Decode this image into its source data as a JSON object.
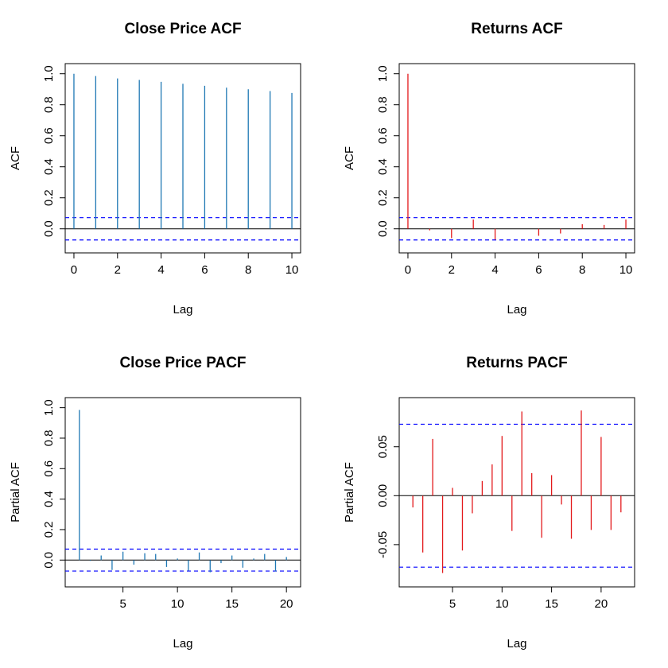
{
  "colors": {
    "blue_bar": "#1f78b4",
    "red_bar": "#e31a1c",
    "conf_line": "#0000ff",
    "axis": "#000000"
  },
  "chart_data": [
    {
      "type": "bar",
      "title": "Close Price ACF",
      "xlabel": "Lag",
      "ylabel": "ACF",
      "xlim": [
        0,
        10
      ],
      "ylim": [
        -0.11,
        1.02
      ],
      "x_ticks": [
        0,
        2,
        4,
        6,
        8,
        10
      ],
      "y_ticks": [
        0.0,
        0.2,
        0.4,
        0.6,
        0.8,
        1.0
      ],
      "y_tick_labels": [
        "0.0",
        "0.2",
        "0.4",
        "0.6",
        "0.8",
        "1.0"
      ],
      "x": [
        0,
        1,
        2,
        3,
        4,
        5,
        6,
        7,
        8,
        9,
        10
      ],
      "values": [
        1.0,
        0.985,
        0.97,
        0.96,
        0.948,
        0.935,
        0.922,
        0.91,
        0.9,
        0.888,
        0.876
      ],
      "conf_bound": 0.072,
      "bar_color": "blue_bar"
    },
    {
      "type": "bar",
      "title": "Returns ACF",
      "xlabel": "Lag",
      "ylabel": "ACF",
      "xlim": [
        0,
        10
      ],
      "ylim": [
        -0.11,
        1.02
      ],
      "x_ticks": [
        0,
        2,
        4,
        6,
        8,
        10
      ],
      "y_ticks": [
        0.0,
        0.2,
        0.4,
        0.6,
        0.8,
        1.0
      ],
      "y_tick_labels": [
        "0.0",
        "0.2",
        "0.4",
        "0.6",
        "0.8",
        "1.0"
      ],
      "x": [
        0,
        1,
        2,
        3,
        4,
        5,
        6,
        7,
        8,
        9,
        10
      ],
      "values": [
        1.0,
        -0.01,
        -0.06,
        0.06,
        -0.07,
        0.0,
        -0.045,
        -0.03,
        0.03,
        0.025,
        0.06
      ],
      "conf_bound": 0.072,
      "bar_color": "red_bar"
    },
    {
      "type": "bar",
      "title": "Close Price PACF",
      "xlabel": "Lag",
      "ylabel": "Partial ACF",
      "xlim": [
        0.5,
        20.5
      ],
      "ylim": [
        -0.13,
        1.02
      ],
      "x_ticks": [
        5,
        10,
        15,
        20
      ],
      "y_ticks": [
        0.0,
        0.2,
        0.4,
        0.6,
        0.8,
        1.0
      ],
      "y_tick_labels": [
        "0.0",
        "0.2",
        "0.4",
        "0.6",
        "0.8",
        "1.0"
      ],
      "x": [
        1,
        2,
        3,
        4,
        5,
        6,
        7,
        8,
        9,
        10,
        11,
        12,
        13,
        14,
        15,
        16,
        17,
        18,
        19,
        20
      ],
      "values": [
        0.985,
        -0.005,
        0.03,
        -0.065,
        0.055,
        -0.03,
        0.045,
        0.04,
        -0.045,
        0.01,
        -0.07,
        0.05,
        -0.08,
        -0.02,
        0.03,
        -0.05,
        0.01,
        0.04,
        -0.075,
        0.02
      ],
      "conf_bound": 0.072,
      "bar_color": "blue_bar"
    },
    {
      "type": "bar",
      "title": "Returns PACF",
      "xlabel": "Lag",
      "ylabel": "Partial ACF",
      "xlim": [
        0.5,
        22.5
      ],
      "ylim": [
        -0.086,
        0.093
      ],
      "x_ticks": [
        5,
        10,
        15,
        20
      ],
      "y_ticks": [
        -0.05,
        0.0,
        0.05
      ],
      "y_tick_labels": [
        "-0.05",
        "0.00",
        "0.05"
      ],
      "x": [
        1,
        2,
        3,
        4,
        5,
        6,
        7,
        8,
        9,
        10,
        11,
        12,
        13,
        14,
        15,
        16,
        17,
        18,
        19,
        20,
        21,
        22
      ],
      "values": [
        -0.012,
        -0.058,
        0.058,
        -0.079,
        0.008,
        -0.056,
        -0.018,
        0.015,
        0.032,
        0.061,
        -0.036,
        0.086,
        0.023,
        -0.043,
        0.021,
        -0.009,
        -0.044,
        0.087,
        -0.035,
        0.06,
        -0.035,
        -0.017
      ],
      "conf_bound": 0.073,
      "bar_color": "red_bar"
    }
  ]
}
